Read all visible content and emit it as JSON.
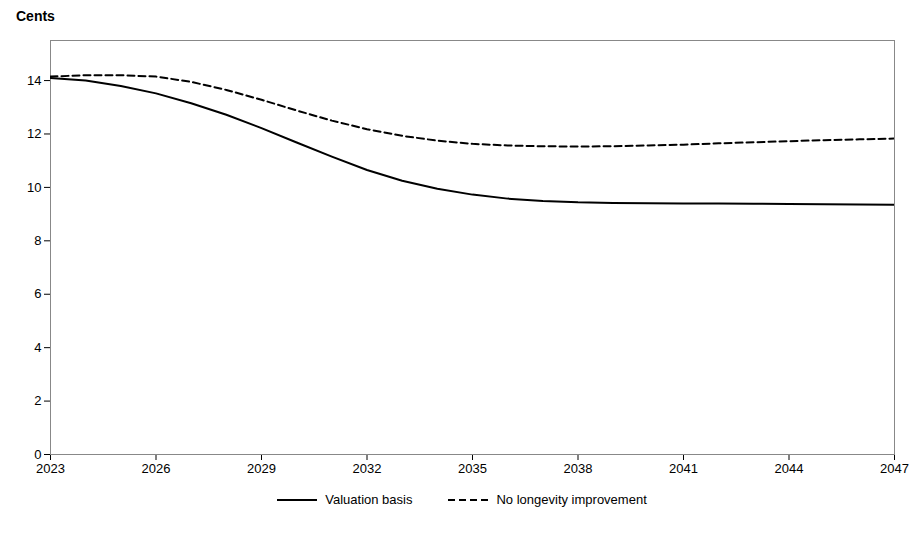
{
  "chart_data": {
    "type": "line",
    "ylabel": "Cents",
    "x": [
      2023,
      2024,
      2025,
      2026,
      2027,
      2028,
      2029,
      2030,
      2031,
      2032,
      2033,
      2034,
      2035,
      2036,
      2037,
      2038,
      2039,
      2040,
      2041,
      2042,
      2043,
      2044,
      2045,
      2046,
      2047
    ],
    "series": [
      {
        "name": "Valuation basis",
        "color": "#000000",
        "line_style": "solid",
        "values": [
          14.1,
          14.0,
          13.8,
          13.52,
          13.15,
          12.72,
          12.22,
          11.68,
          11.15,
          10.65,
          10.25,
          9.95,
          9.73,
          9.58,
          9.49,
          9.44,
          9.42,
          9.41,
          9.4,
          9.4,
          9.39,
          9.38,
          9.37,
          9.36,
          9.35
        ]
      },
      {
        "name": "No longevity improvement",
        "color": "#000000",
        "line_style": "dashed",
        "values": [
          14.15,
          14.2,
          14.2,
          14.15,
          13.95,
          13.65,
          13.28,
          12.88,
          12.5,
          12.18,
          11.93,
          11.75,
          11.63,
          11.57,
          11.54,
          11.53,
          11.54,
          11.57,
          11.6,
          11.65,
          11.69,
          11.73,
          11.77,
          11.8,
          11.83
        ]
      }
    ],
    "xlim": [
      2023,
      2047
    ],
    "ylim": [
      0,
      15.5
    ],
    "xticks": [
      2023,
      2026,
      2029,
      2032,
      2035,
      2038,
      2041,
      2044,
      2047
    ],
    "yticks": [
      0,
      2,
      4,
      6,
      8,
      10,
      12,
      14
    ],
    "grid": false,
    "legend": "bottom"
  }
}
